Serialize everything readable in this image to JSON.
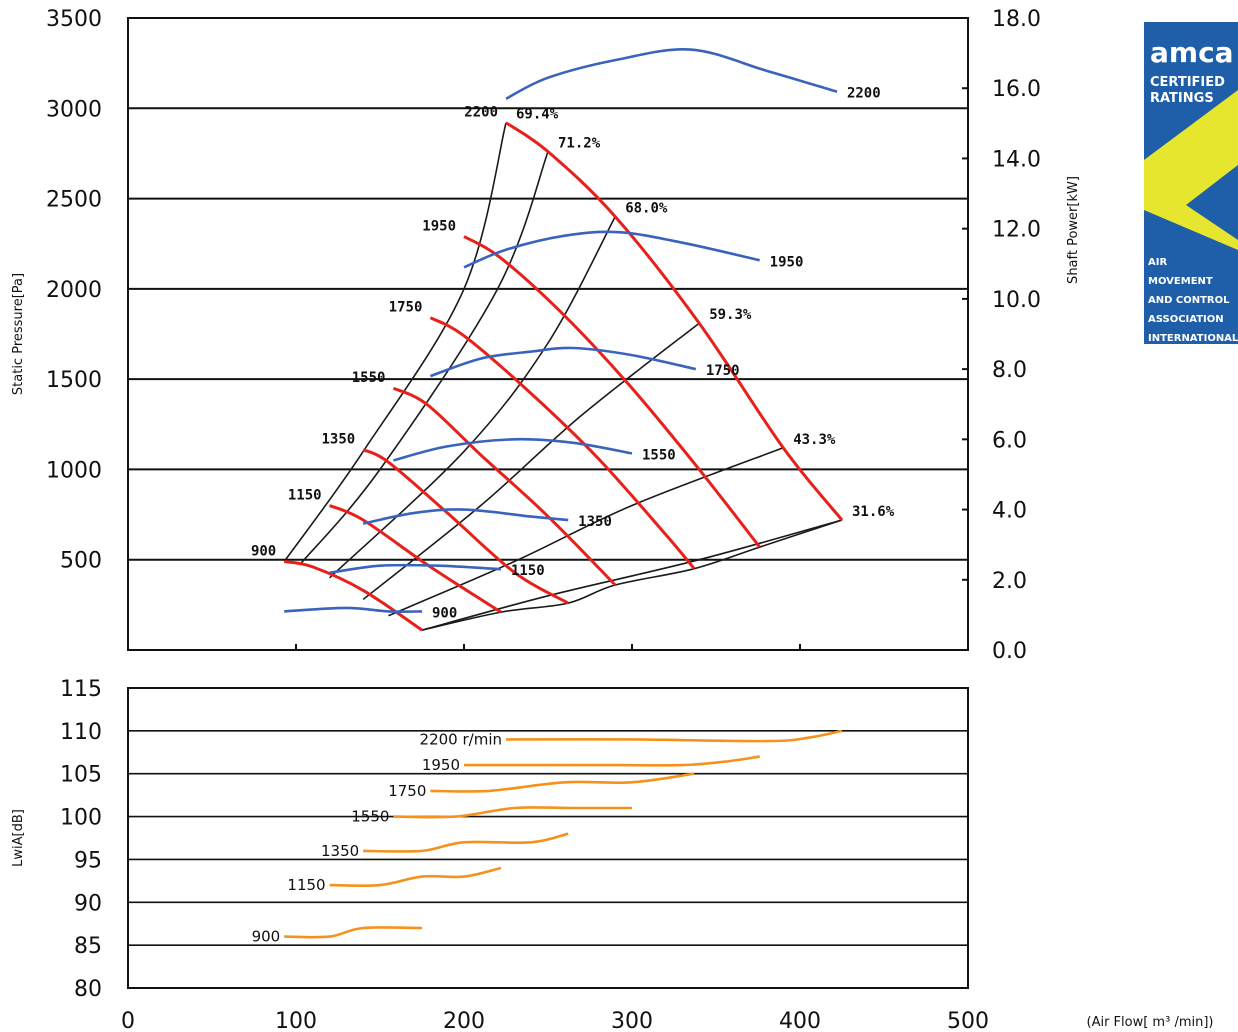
{
  "badge": {
    "brand": "amca",
    "line1": "CERTIFIED",
    "line2": "RATINGS",
    "org": [
      "AIR",
      "MOVEMENT",
      "AND CONTROL",
      "ASSOCIATION",
      "INTERNATIONAL"
    ]
  },
  "chart_data": [
    {
      "type": "line",
      "name": "performance",
      "ylabel": "Static Pressure[Pa]",
      "y2label": "Shaft Power[kW]",
      "xlim": [
        0,
        500
      ],
      "ylim": [
        0,
        3500
      ],
      "y2lim": [
        0,
        18
      ],
      "yticks": [
        500,
        1000,
        1500,
        2000,
        2500,
        3000,
        3500
      ],
      "y2ticks": [
        "0.0",
        "2.0",
        "4.0",
        "6.0",
        "8.0",
        "10.0",
        "12.0",
        "14.0",
        "16.0",
        "18.0"
      ],
      "grid": true,
      "pressure_curves": [
        {
          "speed": "2200",
          "points": [
            [
              225,
              2920
            ],
            [
              250,
              2760
            ],
            [
              290,
              2400
            ],
            [
              340,
              1810
            ],
            [
              390,
              1120
            ],
            [
              425,
              720
            ]
          ]
        },
        {
          "speed": "1950",
          "points": [
            [
              200,
              2290
            ],
            [
              222,
              2170
            ],
            [
              260,
              1850
            ],
            [
              300,
              1450
            ],
            [
              340,
              1000
            ],
            [
              376,
              570
            ]
          ]
        },
        {
          "speed": "1750",
          "points": [
            [
              180,
              1840
            ],
            [
              200,
              1740
            ],
            [
              240,
              1420
            ],
            [
              280,
              1060
            ],
            [
              320,
              640
            ],
            [
              337,
              450
            ]
          ]
        },
        {
          "speed": "1550",
          "points": [
            [
              158,
              1450
            ],
            [
              178,
              1360
            ],
            [
              210,
              1080
            ],
            [
              250,
              740
            ],
            [
              290,
              360
            ]
          ]
        },
        {
          "speed": "1350",
          "points": [
            [
              140,
              1110
            ],
            [
              155,
              1040
            ],
            [
              190,
              760
            ],
            [
              230,
              430
            ],
            [
              262,
              260
            ]
          ]
        },
        {
          "speed": "1150",
          "points": [
            [
              120,
              800
            ],
            [
              140,
              720
            ],
            [
              180,
              460
            ],
            [
              222,
              210
            ]
          ]
        },
        {
          "speed": "900",
          "points": [
            [
              93,
              490
            ],
            [
              110,
              460
            ],
            [
              140,
              330
            ],
            [
              175,
              110
            ]
          ]
        }
      ],
      "efficiency_lines": [
        {
          "label": "69.4%",
          "points": [
            [
              93,
              490
            ],
            [
              140,
              1100
            ],
            [
              200,
              2000
            ],
            [
              225,
              2920
            ]
          ]
        },
        {
          "label": "71.2%",
          "points": [
            [
              103,
              480
            ],
            [
              150,
              1000
            ],
            [
              220,
              2000
            ],
            [
              250,
              2760
            ]
          ]
        },
        {
          "label": "68.0%",
          "points": [
            [
              120,
              400
            ],
            [
              200,
              1100
            ],
            [
              250,
              1700
            ],
            [
              290,
              2400
            ]
          ]
        },
        {
          "label": "59.3%",
          "points": [
            [
              140,
              280
            ],
            [
              210,
              800
            ],
            [
              270,
              1300
            ],
            [
              340,
              1810
            ]
          ]
        },
        {
          "label": "43.3%",
          "points": [
            [
              155,
              190
            ],
            [
              230,
              490
            ],
            [
              300,
              800
            ],
            [
              390,
              1120
            ]
          ]
        },
        {
          "label": "31.6%",
          "points": [
            [
              175,
              110
            ],
            [
              250,
              300
            ],
            [
              340,
              500
            ],
            [
              425,
              720
            ]
          ]
        }
      ],
      "power_curves": [
        {
          "speed": "2200",
          "points": [
            [
              225,
              15.7
            ],
            [
              250,
              16.3
            ],
            [
              290,
              16.8
            ],
            [
              335,
              17.1
            ],
            [
              380,
              16.5
            ],
            [
              422,
              15.9
            ]
          ]
        },
        {
          "speed": "1950",
          "points": [
            [
              200,
              10.9
            ],
            [
              225,
              11.4
            ],
            [
              260,
              11.8
            ],
            [
              292,
              11.9
            ],
            [
              330,
              11.6
            ],
            [
              376,
              11.1
            ]
          ]
        },
        {
          "speed": "1750",
          "points": [
            [
              180,
              7.8
            ],
            [
              210,
              8.3
            ],
            [
              240,
              8.5
            ],
            [
              265,
              8.6
            ],
            [
              300,
              8.4
            ],
            [
              338,
              8.0
            ]
          ]
        },
        {
          "speed": "1550",
          "points": [
            [
              158,
              5.4
            ],
            [
              190,
              5.8
            ],
            [
              230,
              6.0
            ],
            [
              265,
              5.9
            ],
            [
              300,
              5.6
            ]
          ]
        },
        {
          "speed": "1350",
          "points": [
            [
              140,
              3.6
            ],
            [
              170,
              3.9
            ],
            [
              200,
              4.0
            ],
            [
              240,
              3.8
            ],
            [
              262,
              3.7
            ]
          ]
        },
        {
          "speed": "1150",
          "points": [
            [
              120,
              2.2
            ],
            [
              150,
              2.4
            ],
            [
              185,
              2.4
            ],
            [
              222,
              2.3
            ]
          ]
        },
        {
          "speed": "900",
          "points": [
            [
              93,
              1.1
            ],
            [
              130,
              1.2
            ],
            [
              155,
              1.1
            ],
            [
              175,
              1.1
            ]
          ]
        }
      ]
    },
    {
      "type": "line",
      "name": "noise",
      "ylabel": "LwiA[dB]",
      "xlabel": "(Air Flow[ m³ /min])",
      "xlim": [
        0,
        500
      ],
      "ylim": [
        80,
        115
      ],
      "xticks": [
        0,
        100,
        200,
        300,
        400,
        500
      ],
      "yticks": [
        80,
        85,
        90,
        95,
        100,
        105,
        110,
        115
      ],
      "grid": true,
      "series": [
        {
          "name": "2200 r/min",
          "points": [
            [
              225,
              109
            ],
            [
              300,
              109
            ],
            [
              380,
              108.8
            ],
            [
              405,
              109.2
            ],
            [
              425,
              110
            ]
          ]
        },
        {
          "name": "1950",
          "points": [
            [
              200,
              106
            ],
            [
              290,
              106
            ],
            [
              330,
              106
            ],
            [
              355,
              106.4
            ],
            [
              376,
              107
            ]
          ]
        },
        {
          "name": "1750",
          "points": [
            [
              180,
              103
            ],
            [
              215,
              103
            ],
            [
              260,
              104
            ],
            [
              300,
              104
            ],
            [
              337,
              105
            ]
          ]
        },
        {
          "name": "1550",
          "points": [
            [
              158,
              100
            ],
            [
              195,
              100
            ],
            [
              230,
              101
            ],
            [
              265,
              101
            ],
            [
              300,
              101
            ]
          ]
        },
        {
          "name": "1350",
          "points": [
            [
              140,
              96
            ],
            [
              175,
              96
            ],
            [
              200,
              97
            ],
            [
              240,
              97
            ],
            [
              262,
              98
            ]
          ]
        },
        {
          "name": "1150",
          "points": [
            [
              120,
              92
            ],
            [
              150,
              92
            ],
            [
              175,
              93
            ],
            [
              200,
              93
            ],
            [
              222,
              94
            ]
          ]
        },
        {
          "name": "900",
          "points": [
            [
              93,
              86
            ],
            [
              120,
              86
            ],
            [
              140,
              87
            ],
            [
              175,
              87
            ]
          ]
        }
      ]
    }
  ]
}
